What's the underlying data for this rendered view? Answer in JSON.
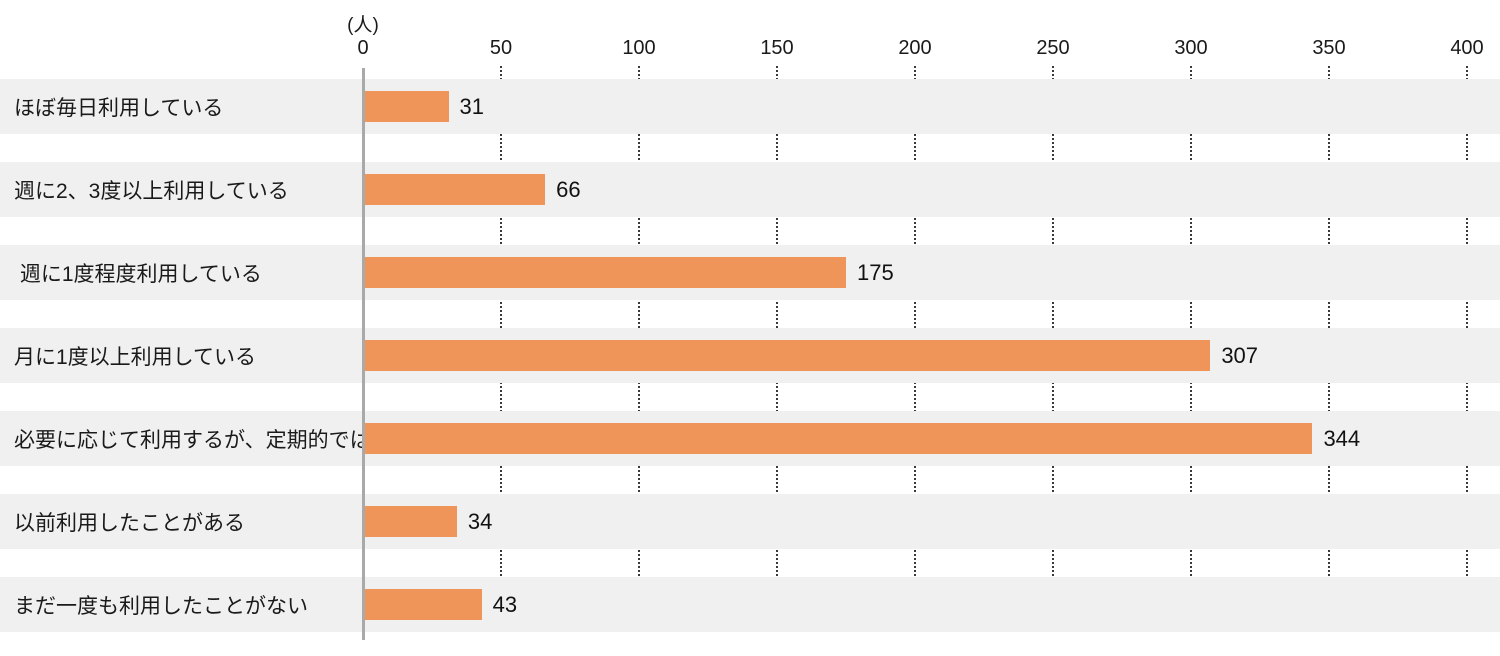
{
  "chart_data": {
    "type": "bar",
    "orientation": "horizontal",
    "title": "",
    "unit_label": "(人)",
    "categories": [
      "ほぼ毎日利用している",
      "週に2、3度以上利用している",
      " 週に1度程度利用している",
      "月に1度以上利用している",
      "必要に応じて利用するが、定期的ではない",
      "以前利用したことがある",
      "まだ一度も利用したことがない"
    ],
    "values": [
      31,
      66,
      175,
      307,
      344,
      34,
      43
    ],
    "x_ticks": [
      0,
      50,
      100,
      150,
      200,
      250,
      300,
      350,
      400
    ],
    "xlim": [
      0,
      400
    ],
    "xlabel": "",
    "ylabel": "",
    "grid": "dotted vertical tick lines in gaps between row bands",
    "legend": "none",
    "colors": {
      "bar": "#F0955A",
      "row_band": "#F0F0F0",
      "axis_line": "#A9A9A9",
      "tick_dots": "#3A3A3A",
      "text": "#1A1A1A"
    }
  }
}
